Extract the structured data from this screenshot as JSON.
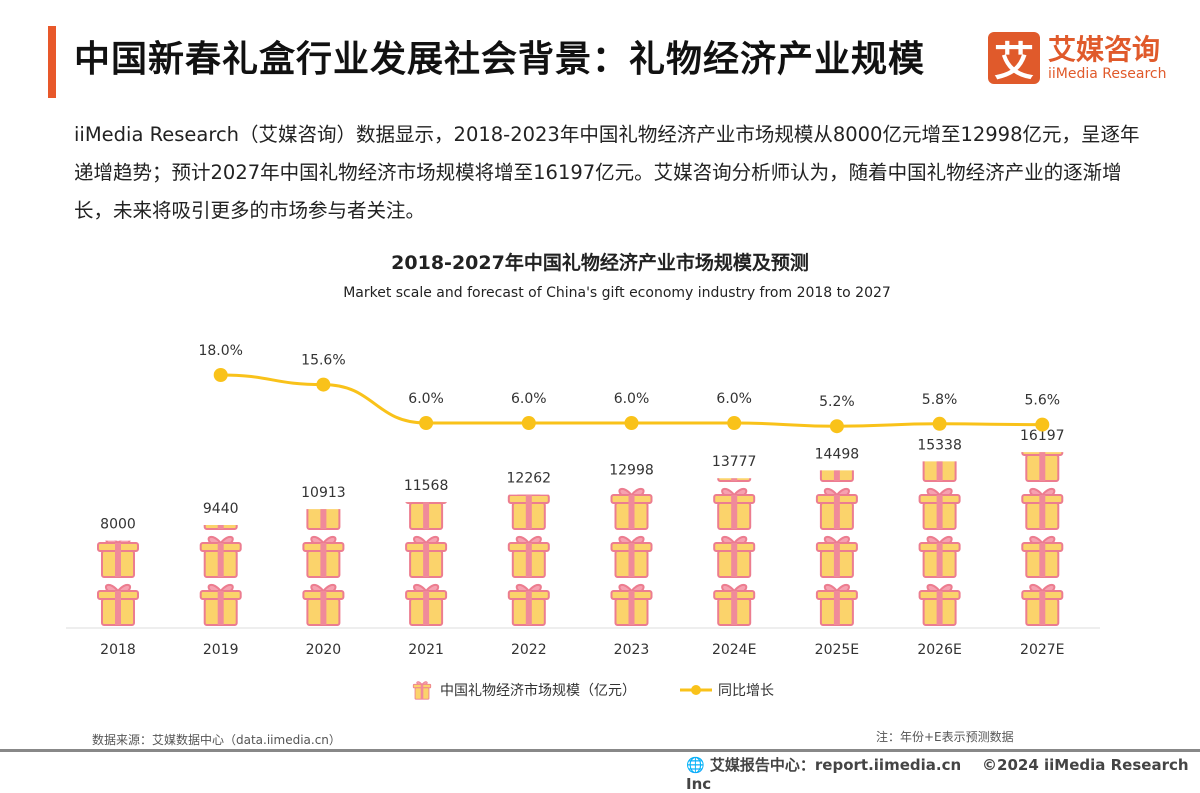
{
  "header": {
    "title": "中国新春礼盒行业发展社会背景：礼物经济产业规模",
    "logo_mark": "艾",
    "logo_cn": "艾媒咨询",
    "logo_en": "iiMedia Research"
  },
  "description": "iiMedia Research（艾媒咨询）数据显示，2018-2023年中国礼物经济产业市场规模从8000亿元增至12998亿元，呈逐年递增趋势；预计2027年中国礼物经济市场规模将增至16197亿元。艾媒咨询分析师认为，随着中国礼物经济产业的逐渐增长，未来将吸引更多的市场参与者关注。",
  "chart_data": {
    "type": "bar",
    "title": "2018-2027年中国礼物经济产业市场规模及预测",
    "subtitle": "Market scale and forecast of China's gift economy industry from 2018 to 2027",
    "categories": [
      "2018",
      "2019",
      "2020",
      "2021",
      "2022",
      "2023",
      "2024E",
      "2025E",
      "2026E",
      "2027E"
    ],
    "series": [
      {
        "name": "中国礼物经济市场规模（亿元）",
        "type": "pictorial-bar",
        "icon": "gift-icon",
        "values": [
          8000,
          9440,
          10913,
          11568,
          12262,
          12998,
          13777,
          14498,
          15338,
          16197
        ]
      },
      {
        "name": "同比增长",
        "type": "line",
        "values": [
          null,
          18.0,
          15.6,
          6.0,
          6.0,
          6.0,
          6.0,
          5.2,
          5.8,
          5.6
        ],
        "labels": [
          "",
          "18.0%",
          "15.6%",
          "6.0%",
          "6.0%",
          "6.0%",
          "6.0%",
          "5.2%",
          "5.8%",
          "5.6%"
        ]
      }
    ],
    "colors": {
      "gift_fill": "#fbd36b",
      "gift_ribbon": "#f08a9a",
      "line": "#f9c21a"
    },
    "legend_position": "bottom",
    "grid": false
  },
  "footer": {
    "source": "数据来源：艾媒数据中心（data.iimedia.cn）",
    "note": "注：年份+E表示预测数据",
    "site": "艾媒报告中心：report.iimedia.cn",
    "copyright": "©2024  iiMedia Research  Inc"
  }
}
